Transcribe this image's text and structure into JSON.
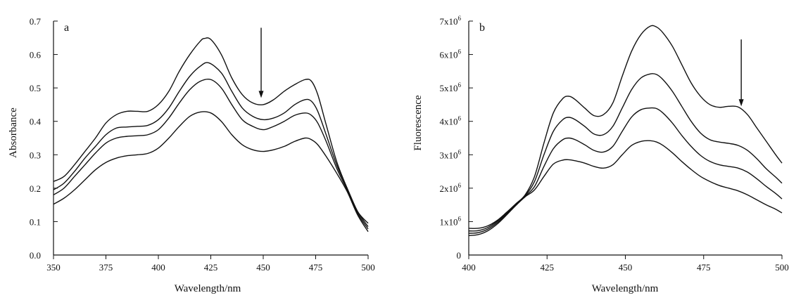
{
  "chart_data": [
    {
      "panel_id": "a",
      "type": "line",
      "panel_label": "a",
      "xlabel": "Wavelength/nm",
      "ylabel": "Absorbance",
      "xlim": [
        350,
        500
      ],
      "ylim": [
        0.0,
        0.7
      ],
      "x_ticks": [
        350,
        375,
        400,
        425,
        450,
        475,
        500
      ],
      "x_tick_labels": [
        "350",
        "375",
        "400",
        "425",
        "450",
        "475",
        "500"
      ],
      "y_ticks": [
        0.0,
        0.1,
        0.2,
        0.3,
        0.4,
        0.5,
        0.6,
        0.7
      ],
      "y_tick_labels": [
        "0.0",
        "0.1",
        "0.2",
        "0.3",
        "0.4",
        "0.5",
        "0.6",
        "0.7"
      ],
      "grid": false,
      "arrow": {
        "x": 449,
        "y_from": 0.68,
        "y_to": 0.47,
        "direction": "down"
      },
      "series": [
        {
          "x": [
            350,
            355,
            360,
            365,
            370,
            375,
            380,
            385,
            390,
            395,
            400,
            405,
            410,
            415,
            420,
            422,
            425,
            430,
            435,
            440,
            445,
            450,
            455,
            460,
            465,
            470,
            473,
            476,
            480,
            485,
            490,
            495,
            500
          ],
          "values": [
            0.22,
            0.235,
            0.27,
            0.31,
            0.35,
            0.395,
            0.42,
            0.43,
            0.43,
            0.43,
            0.45,
            0.49,
            0.55,
            0.6,
            0.64,
            0.648,
            0.645,
            0.6,
            0.53,
            0.48,
            0.455,
            0.45,
            0.465,
            0.49,
            0.51,
            0.525,
            0.52,
            0.48,
            0.39,
            0.28,
            0.2,
            0.13,
            0.095
          ]
        },
        {
          "x": [
            350,
            355,
            360,
            365,
            370,
            375,
            380,
            385,
            390,
            395,
            400,
            405,
            410,
            415,
            420,
            424,
            430,
            435,
            440,
            445,
            450,
            455,
            460,
            465,
            470,
            473,
            476,
            480,
            485,
            490,
            495,
            500
          ],
          "values": [
            0.195,
            0.215,
            0.25,
            0.29,
            0.325,
            0.36,
            0.38,
            0.383,
            0.385,
            0.388,
            0.405,
            0.44,
            0.49,
            0.535,
            0.565,
            0.575,
            0.545,
            0.49,
            0.44,
            0.415,
            0.405,
            0.41,
            0.425,
            0.45,
            0.465,
            0.46,
            0.43,
            0.36,
            0.27,
            0.2,
            0.13,
            0.085
          ]
        },
        {
          "x": [
            350,
            355,
            360,
            365,
            370,
            375,
            380,
            385,
            390,
            395,
            400,
            405,
            410,
            415,
            420,
            425,
            430,
            435,
            440,
            445,
            450,
            455,
            460,
            465,
            470,
            473,
            476,
            480,
            485,
            490,
            495,
            500
          ],
          "values": [
            0.18,
            0.2,
            0.235,
            0.27,
            0.305,
            0.335,
            0.35,
            0.355,
            0.357,
            0.36,
            0.375,
            0.41,
            0.455,
            0.495,
            0.52,
            0.525,
            0.5,
            0.45,
            0.405,
            0.385,
            0.375,
            0.385,
            0.4,
            0.418,
            0.425,
            0.418,
            0.395,
            0.34,
            0.26,
            0.195,
            0.125,
            0.078
          ]
        },
        {
          "x": [
            350,
            355,
            360,
            365,
            370,
            375,
            380,
            385,
            390,
            395,
            400,
            405,
            410,
            415,
            420,
            425,
            430,
            435,
            440,
            445,
            450,
            455,
            460,
            465,
            470,
            473,
            476,
            480,
            485,
            490,
            495,
            500
          ],
          "values": [
            0.152,
            0.17,
            0.195,
            0.225,
            0.255,
            0.277,
            0.29,
            0.297,
            0.3,
            0.304,
            0.32,
            0.35,
            0.385,
            0.415,
            0.428,
            0.425,
            0.4,
            0.36,
            0.33,
            0.315,
            0.31,
            0.315,
            0.325,
            0.34,
            0.35,
            0.345,
            0.33,
            0.295,
            0.245,
            0.19,
            0.12,
            0.07
          ]
        }
      ]
    },
    {
      "panel_id": "b",
      "type": "line",
      "panel_label": "b",
      "xlabel": "Wavelength/nm",
      "ylabel": "Fluorescence",
      "xlim": [
        400,
        500
      ],
      "ylim": [
        0,
        7000000
      ],
      "x_ticks": [
        400,
        425,
        450,
        475,
        500
      ],
      "x_tick_labels": [
        "400",
        "425",
        "450",
        "475",
        "500"
      ],
      "y_ticks": [
        0,
        1000000,
        2000000,
        3000000,
        4000000,
        5000000,
        6000000,
        7000000
      ],
      "y_tick_labels": [
        {
          "mantissa": "0",
          "exponent": ""
        },
        {
          "mantissa": "1x10",
          "exponent": "6"
        },
        {
          "mantissa": "2x10",
          "exponent": "6"
        },
        {
          "mantissa": "3x10",
          "exponent": "6"
        },
        {
          "mantissa": "4x10",
          "exponent": "6"
        },
        {
          "mantissa": "5x10",
          "exponent": "6"
        },
        {
          "mantissa": "6x10",
          "exponent": "6"
        },
        {
          "mantissa": "7x10",
          "exponent": "6"
        }
      ],
      "grid": false,
      "arrow": {
        "x": 487,
        "y_from": 6450000,
        "y_to": 4450000,
        "direction": "down"
      },
      "series": [
        {
          "x": [
            400,
            403,
            406,
            409,
            412,
            415,
            418,
            421,
            424,
            427,
            430,
            432,
            434,
            437,
            440,
            443,
            446,
            449,
            452,
            455,
            458,
            460,
            462,
            465,
            468,
            471,
            474,
            477,
            480,
            483,
            486,
            489,
            492,
            495,
            498,
            500
          ],
          "values": [
            800000,
            800000,
            870000,
            1030000,
            1270000,
            1530000,
            1800000,
            2350000,
            3350000,
            4250000,
            4680000,
            4750000,
            4650000,
            4400000,
            4170000,
            4200000,
            4550000,
            5350000,
            6100000,
            6600000,
            6850000,
            6820000,
            6650000,
            6250000,
            5700000,
            5150000,
            4750000,
            4500000,
            4420000,
            4450000,
            4430000,
            4200000,
            3800000,
            3400000,
            3000000,
            2750000
          ]
        },
        {
          "x": [
            400,
            403,
            406,
            409,
            412,
            415,
            418,
            421,
            424,
            427,
            430,
            432,
            434,
            437,
            440,
            443,
            446,
            449,
            452,
            455,
            458,
            460,
            462,
            465,
            468,
            471,
            474,
            477,
            480,
            483,
            486,
            489,
            492,
            495,
            498,
            500
          ],
          "values": [
            720000,
            730000,
            820000,
            1000000,
            1250000,
            1520000,
            1780000,
            2200000,
            3000000,
            3700000,
            4050000,
            4120000,
            4050000,
            3850000,
            3620000,
            3600000,
            3850000,
            4400000,
            4950000,
            5300000,
            5420000,
            5400000,
            5250000,
            4900000,
            4450000,
            4000000,
            3650000,
            3450000,
            3380000,
            3340000,
            3280000,
            3130000,
            2880000,
            2580000,
            2330000,
            2150000
          ]
        },
        {
          "x": [
            400,
            403,
            406,
            409,
            412,
            415,
            418,
            421,
            424,
            427,
            430,
            432,
            434,
            437,
            440,
            443,
            446,
            449,
            452,
            455,
            458,
            460,
            462,
            465,
            468,
            471,
            474,
            477,
            480,
            483,
            486,
            489,
            492,
            495,
            498,
            500
          ],
          "values": [
            650000,
            670000,
            770000,
            960000,
            1220000,
            1500000,
            1760000,
            2050000,
            2650000,
            3180000,
            3450000,
            3500000,
            3450000,
            3300000,
            3130000,
            3080000,
            3250000,
            3700000,
            4130000,
            4350000,
            4400000,
            4380000,
            4250000,
            3950000,
            3580000,
            3250000,
            2980000,
            2800000,
            2700000,
            2650000,
            2600000,
            2480000,
            2280000,
            2050000,
            1840000,
            1680000
          ]
        },
        {
          "x": [
            400,
            403,
            406,
            409,
            412,
            415,
            418,
            421,
            424,
            427,
            430,
            432,
            434,
            437,
            440,
            443,
            446,
            449,
            452,
            455,
            458,
            460,
            462,
            465,
            468,
            471,
            474,
            477,
            480,
            483,
            486,
            489,
            492,
            495,
            498,
            500
          ],
          "values": [
            580000,
            610000,
            720000,
            920000,
            1190000,
            1480000,
            1740000,
            1950000,
            2350000,
            2720000,
            2840000,
            2850000,
            2820000,
            2750000,
            2650000,
            2600000,
            2700000,
            3000000,
            3280000,
            3400000,
            3420000,
            3380000,
            3280000,
            3060000,
            2800000,
            2560000,
            2350000,
            2200000,
            2080000,
            2000000,
            1920000,
            1800000,
            1650000,
            1500000,
            1370000,
            1260000
          ]
        }
      ]
    }
  ]
}
